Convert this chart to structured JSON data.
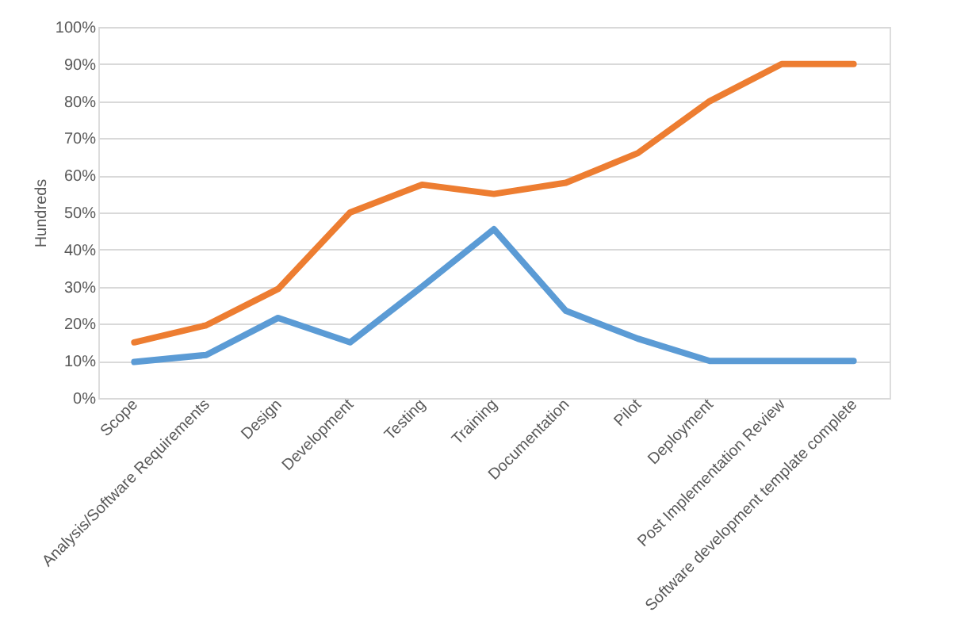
{
  "chart_data": {
    "type": "line",
    "ylabel": "Hundreds",
    "categories": [
      "Scope",
      "Analysis/Software Requirements",
      "Design",
      "Development",
      "Testing",
      "Training",
      "Documentation",
      "Pilot",
      "Deployment",
      "Post Implementation Review",
      "Software development template complete"
    ],
    "series": [
      {
        "color": "#5b9bd5",
        "values": [
          9.7,
          11.6,
          21.6,
          15,
          30,
          45.5,
          23.5,
          16,
          10,
          10,
          10
        ]
      },
      {
        "color": "#ed7d31",
        "values": [
          15,
          19.6,
          29.4,
          50,
          57.5,
          55,
          58,
          66,
          80,
          90,
          90
        ]
      }
    ],
    "ylim": [
      0,
      100
    ],
    "yticks": [
      {
        "value": 0,
        "label": "0%"
      },
      {
        "value": 10,
        "label": "10%"
      },
      {
        "value": 20,
        "label": "20%"
      },
      {
        "value": 30,
        "label": "30%"
      },
      {
        "value": 40,
        "label": "40%"
      },
      {
        "value": 50,
        "label": "50%"
      },
      {
        "value": 60,
        "label": "60%"
      },
      {
        "value": 70,
        "label": "70%"
      },
      {
        "value": 80,
        "label": "80%"
      },
      {
        "value": 90,
        "label": "90%"
      },
      {
        "value": 100,
        "label": "100%"
      }
    ],
    "grid": "y",
    "legend": false
  }
}
